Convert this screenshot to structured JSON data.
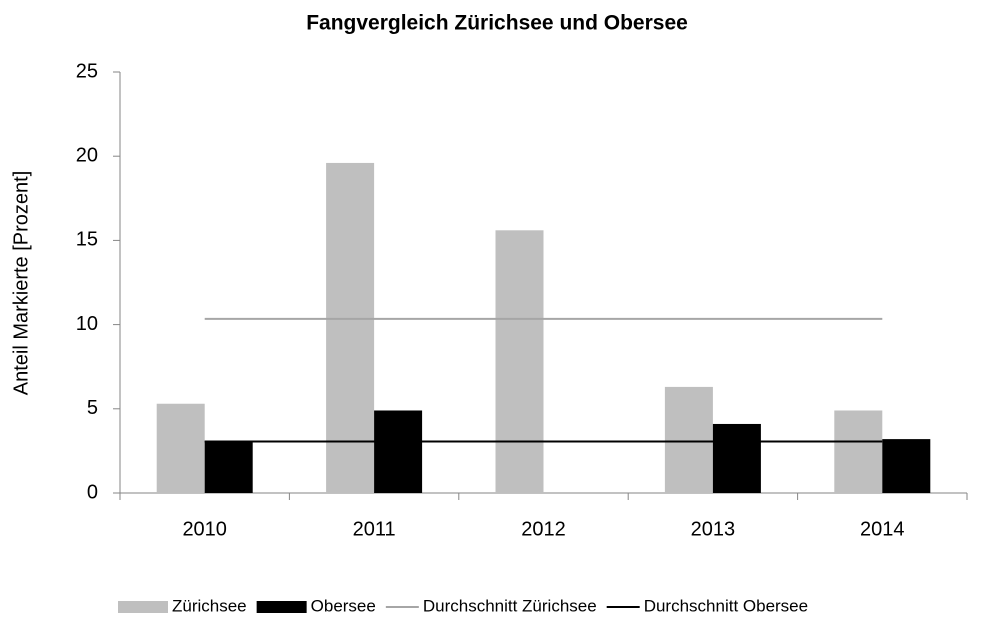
{
  "chart_data": {
    "type": "bar",
    "title": "Fangvergleich Zürichsee und Obersee",
    "y_label": "Anteil Markierte [Prozent]",
    "categories": [
      "2010",
      "2011",
      "2012",
      "2013",
      "2014"
    ],
    "series": [
      {
        "name": "Zürichsee",
        "kind": "bar",
        "color": "#bfbfbf",
        "values": [
          5.3,
          19.6,
          15.6,
          6.3,
          4.9
        ]
      },
      {
        "name": "Obersee",
        "kind": "bar",
        "color": "#000000",
        "values": [
          3.1,
          4.9,
          0,
          4.1,
          3.2
        ]
      },
      {
        "name": "Durchschnitt Zürichsee",
        "kind": "line",
        "color": "#a6a6a6",
        "values": [
          10.34,
          10.34,
          10.34,
          10.34,
          10.34
        ]
      },
      {
        "name": "Durchschnitt Obersee",
        "kind": "line",
        "color": "#000000",
        "values": [
          3.06,
          3.06,
          3.06,
          3.06,
          3.06
        ]
      }
    ],
    "ylim": [
      0,
      25
    ],
    "yticks": [
      0,
      5,
      10,
      15,
      20,
      25
    ],
    "grid": false,
    "legend": "bottom"
  }
}
